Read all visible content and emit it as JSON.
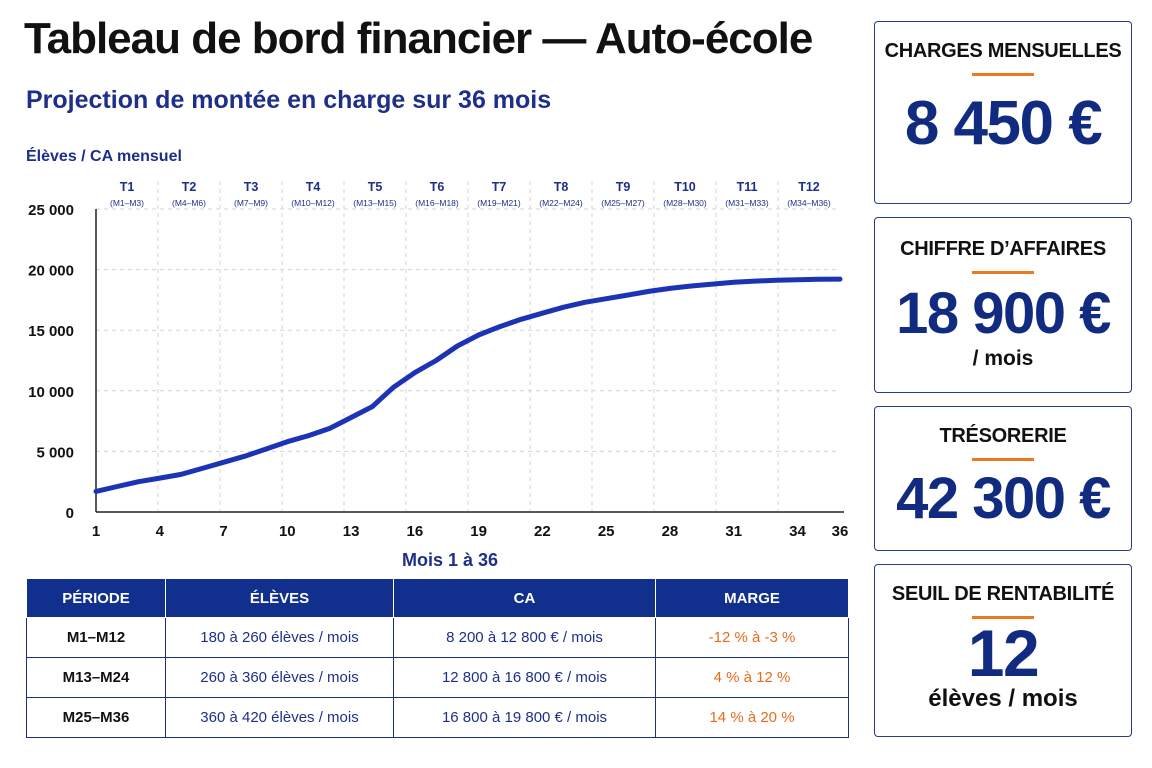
{
  "header": {
    "title": "Tableau de bord financier — Auto-école",
    "subtitle": "Projection de montée en charge sur 36 mois"
  },
  "chart_data": {
    "type": "line",
    "ylabel": "Élèves / CA mensuel",
    "xlabel": "Mois 1 à 36",
    "xlim": [
      1,
      36
    ],
    "ylim": [
      0,
      25000
    ],
    "x_ticks": [
      1,
      4,
      7,
      10,
      13,
      16,
      19,
      22,
      25,
      28,
      31,
      34,
      36
    ],
    "y_ticks": [
      0,
      5000,
      10000,
      15000,
      20000,
      25000
    ],
    "y_tick_labels": [
      "0",
      "5 000",
      "10 000",
      "15 000",
      "20 000",
      "25 000"
    ],
    "grid": true,
    "quarters": [
      {
        "label": "T1",
        "range": "(M1–M3)"
      },
      {
        "label": "T2",
        "range": "(M4–M6)"
      },
      {
        "label": "T3",
        "range": "(M7–M9)"
      },
      {
        "label": "T4",
        "range": "(M10–M12)"
      },
      {
        "label": "T5",
        "range": "(M13–M15)"
      },
      {
        "label": "T6",
        "range": "(M16–M18)"
      },
      {
        "label": "T7",
        "range": "(M19–M21)"
      },
      {
        "label": "T8",
        "range": "(M22–M24)"
      },
      {
        "label": "T9",
        "range": "(M25–M27)"
      },
      {
        "label": "T10",
        "range": "(M28–M30)"
      },
      {
        "label": "T11",
        "range": "(M31–M33)"
      },
      {
        "label": "T12",
        "range": "(M34–M36)"
      }
    ],
    "series": [
      {
        "color": "#1d33b5",
        "x": [
          1,
          2,
          3,
          4,
          5,
          6,
          7,
          8,
          9,
          10,
          11,
          12,
          13,
          14,
          15,
          16,
          17,
          18,
          19,
          20,
          21,
          22,
          23,
          24,
          25,
          26,
          27,
          28,
          29,
          30,
          31,
          32,
          33,
          34,
          35,
          36
        ],
        "values": [
          1700,
          2100,
          2500,
          2800,
          3100,
          3600,
          4100,
          4600,
          5200,
          5800,
          6300,
          6900,
          7800,
          8700,
          10300,
          11500,
          12500,
          13700,
          14600,
          15300,
          15900,
          16400,
          16900,
          17300,
          17600,
          17900,
          18200,
          18450,
          18650,
          18800,
          18950,
          19050,
          19120,
          19170,
          19200,
          19220
        ]
      }
    ]
  },
  "table": {
    "headers": [
      "PÉRIODE",
      "ÉLÈVES",
      "CA",
      "MARGE"
    ],
    "rows": [
      {
        "periode": "M1–M12",
        "eleves": "180 à 260 élèves / mois",
        "ca": "8 200 à 12 800 € / mois",
        "marge": "-12 % à -3 %"
      },
      {
        "periode": "M13–M24",
        "eleves": "260 à 360 élèves / mois",
        "ca": "12 800 à 16 800 € / mois",
        "marge": "4 % à 12 %"
      },
      {
        "periode": "M25–M36",
        "eleves": "360 à 420 élèves / mois",
        "ca": "16 800 à 19 800 € / mois",
        "marge": "14 % à 20 %"
      }
    ]
  },
  "kpis": [
    {
      "title": "CHARGES MENSUELLES",
      "value": "8 450 €",
      "sub": ""
    },
    {
      "title": "CHIFFRE D’AFFAIRES",
      "value": "18 900 €",
      "sub": "/ mois"
    },
    {
      "title": "TRÉSORERIE",
      "value": "42 300 €",
      "sub": ""
    },
    {
      "title": "SEUIL DE RENTABILITÉ",
      "value": "12",
      "sub": "élèves / mois"
    }
  ],
  "colors": {
    "navy": "#112f8c",
    "line_blue": "#1d33b5",
    "orange": "#ea6a1b",
    "text": "#111111"
  }
}
